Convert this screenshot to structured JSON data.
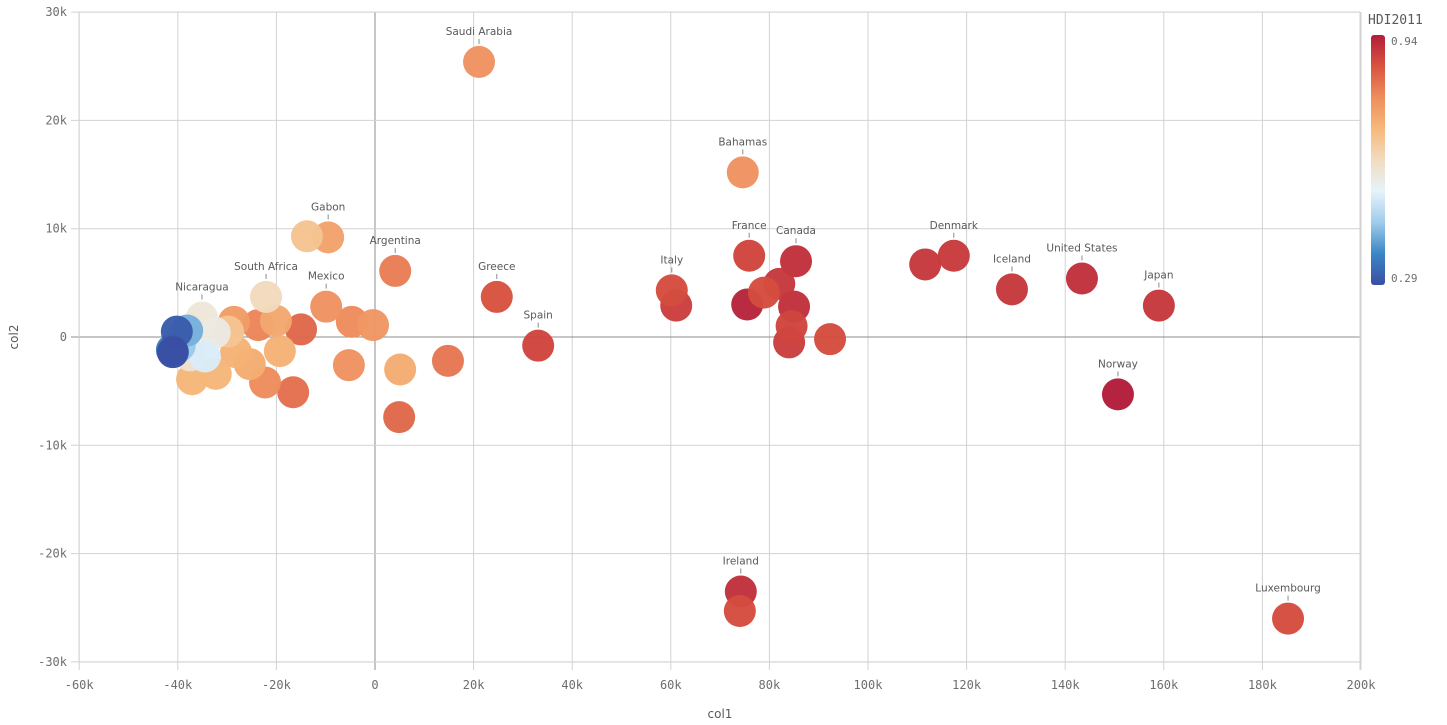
{
  "chart_data": {
    "type": "scatter",
    "title": "",
    "xlabel": "col1",
    "ylabel": "col2",
    "xlim": [
      -65000,
      200000
    ],
    "ylim": [
      -30000,
      30500
    ],
    "x_ticks": [
      -60000,
      -40000,
      -20000,
      0,
      20000,
      40000,
      60000,
      80000,
      100000,
      120000,
      140000,
      160000,
      180000,
      200000
    ],
    "x_tick_labels": [
      "-60k",
      "-40k",
      "-20k",
      "0",
      "20k",
      "40k",
      "60k",
      "80k",
      "100k",
      "120k",
      "140k",
      "160k",
      "180k",
      "200k"
    ],
    "y_ticks": [
      30000,
      20000,
      10000,
      0,
      -10000,
      -20000,
      -30000
    ],
    "y_tick_labels": [
      "30k",
      "20k",
      "10k",
      "0",
      "-10k",
      "-20k",
      "-30k"
    ],
    "grid": true,
    "color_legend": {
      "title": "HDI2011",
      "max_label": "0.94",
      "min_label": "0.29",
      "max": 0.94,
      "min": 0.29,
      "placement": "right",
      "stops": [
        "#3a4ea3",
        "#3a86c4",
        "#9fcbec",
        "#e6f3fb",
        "#f2dcc0",
        "#f6b97a",
        "#ee8e5e",
        "#d9533f",
        "#b21d3b"
      ]
    },
    "points": [
      {
        "x": 21100,
        "y": 25400,
        "hdi": 0.77,
        "label": "Saudi Arabia"
      },
      {
        "x": 74600,
        "y": 15200,
        "hdi": 0.77,
        "label": "Bahamas"
      },
      {
        "x": -13800,
        "y": 9300,
        "hdi": 0.67,
        "label": ""
      },
      {
        "x": -9500,
        "y": 9200,
        "hdi": 0.74,
        "label": "Gabon"
      },
      {
        "x": 4100,
        "y": 6100,
        "hdi": 0.8,
        "label": "Argentina"
      },
      {
        "x": -9900,
        "y": 2800,
        "hdi": 0.77,
        "label": "Mexico"
      },
      {
        "x": -22100,
        "y": 3700,
        "hdi": 0.62,
        "label": "South Africa"
      },
      {
        "x": 24700,
        "y": 3700,
        "hdi": 0.86,
        "label": "Greece"
      },
      {
        "x": 33100,
        "y": -800,
        "hdi": 0.88,
        "label": "Spain"
      },
      {
        "x": 61100,
        "y": 2900,
        "hdi": 0.89,
        "label": ""
      },
      {
        "x": 60200,
        "y": 4300,
        "hdi": 0.87,
        "label": "Italy"
      },
      {
        "x": 75900,
        "y": 7500,
        "hdi": 0.88,
        "label": "France"
      },
      {
        "x": 85400,
        "y": 7000,
        "hdi": 0.91,
        "label": "Canada"
      },
      {
        "x": 75500,
        "y": 3000,
        "hdi": 0.93,
        "label": ""
      },
      {
        "x": 82000,
        "y": 4900,
        "hdi": 0.9,
        "label": ""
      },
      {
        "x": 85000,
        "y": 2800,
        "hdi": 0.91,
        "label": ""
      },
      {
        "x": 84500,
        "y": 1000,
        "hdi": 0.88,
        "label": ""
      },
      {
        "x": 84000,
        "y": -500,
        "hdi": 0.89,
        "label": ""
      },
      {
        "x": 78900,
        "y": 4100,
        "hdi": 0.87,
        "label": ""
      },
      {
        "x": 92300,
        "y": -200,
        "hdi": 0.87,
        "label": ""
      },
      {
        "x": 111600,
        "y": 6700,
        "hdi": 0.9,
        "label": ""
      },
      {
        "x": 117400,
        "y": 7500,
        "hdi": 0.895,
        "label": "Denmark"
      },
      {
        "x": 129200,
        "y": 4400,
        "hdi": 0.9,
        "label": "Iceland"
      },
      {
        "x": 143400,
        "y": 5400,
        "hdi": 0.91,
        "label": "United States"
      },
      {
        "x": 159000,
        "y": 2900,
        "hdi": 0.9,
        "label": "Japan"
      },
      {
        "x": 150700,
        "y": -5300,
        "hdi": 0.94,
        "label": "Norway"
      },
      {
        "x": 74000,
        "y": -25300,
        "hdi": 0.87,
        "label": ""
      },
      {
        "x": 74200,
        "y": -23500,
        "hdi": 0.91,
        "label": "Ireland"
      },
      {
        "x": 185200,
        "y": -26000,
        "hdi": 0.87,
        "label": "Luxembourg"
      },
      {
        "x": -400,
        "y": 1100,
        "hdi": 0.76,
        "label": ""
      },
      {
        "x": -4700,
        "y": 1400,
        "hdi": 0.78,
        "label": ""
      },
      {
        "x": -5300,
        "y": -2600,
        "hdi": 0.77,
        "label": ""
      },
      {
        "x": 5100,
        "y": -3000,
        "hdi": 0.72,
        "label": ""
      },
      {
        "x": 4900,
        "y": -7400,
        "hdi": 0.83,
        "label": ""
      },
      {
        "x": 14800,
        "y": -2200,
        "hdi": 0.81,
        "label": ""
      },
      {
        "x": -16600,
        "y": -5100,
        "hdi": 0.82,
        "label": ""
      },
      {
        "x": -15000,
        "y": 700,
        "hdi": 0.83,
        "label": ""
      },
      {
        "x": -22300,
        "y": -4200,
        "hdi": 0.78,
        "label": ""
      },
      {
        "x": -23700,
        "y": 1100,
        "hdi": 0.79,
        "label": ""
      },
      {
        "x": -28600,
        "y": 1400,
        "hdi": 0.75,
        "label": ""
      },
      {
        "x": -20100,
        "y": 1500,
        "hdi": 0.73,
        "label": ""
      },
      {
        "x": -19300,
        "y": -1300,
        "hdi": 0.71,
        "label": ""
      },
      {
        "x": -25400,
        "y": -2500,
        "hdi": 0.72,
        "label": ""
      },
      {
        "x": -37100,
        "y": -3900,
        "hdi": 0.7,
        "label": ""
      },
      {
        "x": -32300,
        "y": -3400,
        "hdi": 0.7,
        "label": ""
      },
      {
        "x": -28200,
        "y": -1400,
        "hdi": 0.71,
        "label": ""
      },
      {
        "x": -29800,
        "y": 500,
        "hdi": 0.67,
        "label": ""
      },
      {
        "x": -35100,
        "y": 1800,
        "hdi": 0.58,
        "label": "Nicaragua"
      },
      {
        "x": -37500,
        "y": -1700,
        "hdi": 0.6,
        "label": ""
      },
      {
        "x": -32500,
        "y": 400,
        "hdi": 0.57,
        "label": ""
      },
      {
        "x": -34500,
        "y": -1800,
        "hdi": 0.52,
        "label": ""
      },
      {
        "x": -39100,
        "y": 0,
        "hdi": 0.5,
        "label": ""
      },
      {
        "x": -38100,
        "y": 600,
        "hdi": 0.42,
        "label": ""
      },
      {
        "x": -39600,
        "y": -800,
        "hdi": 0.45,
        "label": ""
      },
      {
        "x": -41200,
        "y": -1200,
        "hdi": 0.36,
        "label": ""
      },
      {
        "x": -40200,
        "y": 500,
        "hdi": 0.31,
        "label": ""
      },
      {
        "x": -41000,
        "y": -1400,
        "hdi": 0.29,
        "label": ""
      }
    ]
  }
}
